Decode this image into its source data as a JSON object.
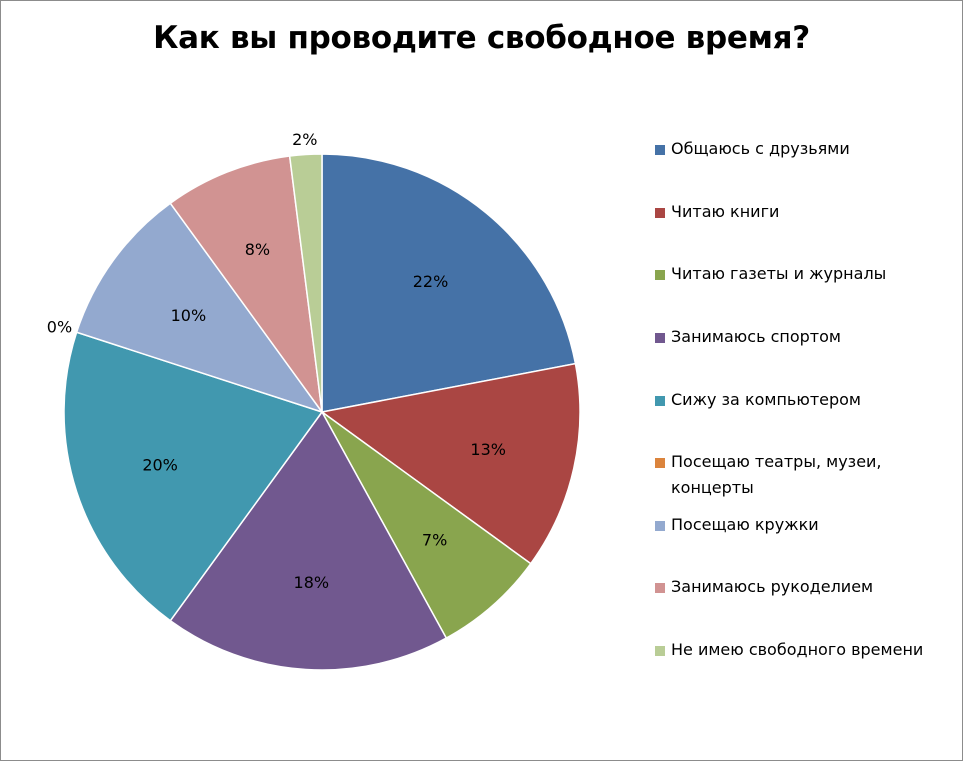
{
  "chart_data": {
    "type": "pie",
    "title": "Как вы проводите свободное время?",
    "start_angle_deg": 0,
    "direction": "clockwise",
    "slices": [
      {
        "name": "Общаюсь с друзьями",
        "value": 22,
        "label": "22%",
        "color": "#4572A7"
      },
      {
        "name": "Читаю книги",
        "value": 13,
        "label": "13%",
        "color": "#AA4643"
      },
      {
        "name": "Читаю газеты и журналы",
        "value": 7,
        "label": "7%",
        "color": "#89A54E"
      },
      {
        "name": "Занимаюсь спортом",
        "value": 18,
        "label": "18%",
        "color": "#71588F"
      },
      {
        "name": "Сижу за компьютером",
        "value": 20,
        "label": "20%",
        "color": "#4198AF"
      },
      {
        "name": "Посещаю театры, музеи, концерты",
        "value": 0,
        "label": "0%",
        "color": "#DB843D"
      },
      {
        "name": "Посещаю кружки",
        "value": 10,
        "label": "10%",
        "color": "#93A9CF"
      },
      {
        "name": "Занимаюсь рукоделием",
        "value": 8,
        "label": "8%",
        "color": "#D19392"
      },
      {
        "name": "Не имею свободного времени",
        "value": 2,
        "label": "2%",
        "color": "#B9CD96"
      }
    ],
    "legend": {
      "placement": "right",
      "items": [
        {
          "text": "Общаюсь с друзьями",
          "color": "#4572A7"
        },
        {
          "text": "Читаю книги",
          "color": "#AA4643"
        },
        {
          "text": "Читаю газеты и журналы",
          "color": "#89A54E"
        },
        {
          "text": "Занимаюсь спортом",
          "color": "#71588F"
        },
        {
          "text": "Сижу за компьютером",
          "color": "#4198AF"
        },
        {
          "text": "Посещаю театры, музеи,\nконцерты",
          "color": "#DB843D"
        },
        {
          "text": "Посещаю кружки",
          "color": "#93A9CF"
        },
        {
          "text": "Занимаюсь рукоделием",
          "color": "#D19392"
        },
        {
          "text": "Не имею свободного времени",
          "color": "#B9CD96"
        }
      ]
    }
  }
}
